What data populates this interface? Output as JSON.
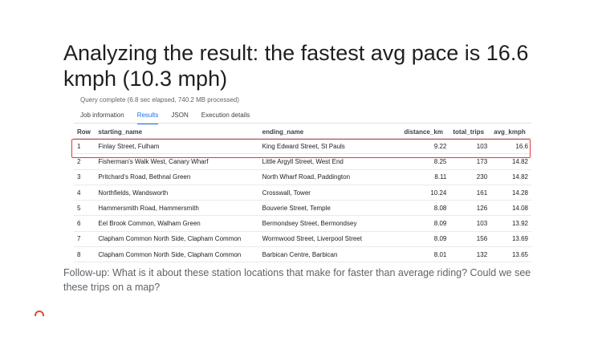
{
  "slide": {
    "title": "Analyzing the result: the fastest avg pace is 16.6 kmph (10.3 mph)",
    "followup": "Follow-up: What is it about these station locations that make for faster than average riding? Could we see these trips on a map?"
  },
  "query": {
    "status": "Query complete (6.8 sec elapsed, 740.2 MB processed)",
    "tabs": [
      "Job information",
      "Results",
      "JSON",
      "Execution details"
    ],
    "active_tab": "Results"
  },
  "table": {
    "headers": [
      "Row",
      "starting_name",
      "ending_name",
      "distance_km",
      "total_trips",
      "avg_kmph"
    ],
    "rows": [
      [
        "1",
        "Finlay Street, Fulham",
        "King Edward Street, St Pauls",
        "9.22",
        "103",
        "16.6"
      ],
      [
        "2",
        "Fisherman's Walk West, Canary Wharf",
        "Little Argyll Street, West End",
        "8.25",
        "173",
        "14.82"
      ],
      [
        "3",
        "Pritchard's Road, Bethnal Green",
        "North Wharf Road, Paddington",
        "8.11",
        "230",
        "14.82"
      ],
      [
        "4",
        "Northfields, Wandsworth",
        "Crosswall, Tower",
        "10.24",
        "161",
        "14.28"
      ],
      [
        "5",
        "Hammersmith Road, Hammersmith",
        "Bouverie Street, Temple",
        "8.08",
        "126",
        "14.08"
      ],
      [
        "6",
        "Eel Brook Common, Walham Green",
        "Bermondsey Street, Bermondsey",
        "8.09",
        "103",
        "13.92"
      ],
      [
        "7",
        "Clapham Common North Side, Clapham Common",
        "Wormwood Street, Liverpool Street",
        "8.09",
        "156",
        "13.69"
      ],
      [
        "8",
        "Clapham Common North Side, Clapham Common",
        "Barbican Centre, Barbican",
        "8.01",
        "132",
        "13.65"
      ]
    ],
    "highlighted_row": 1
  },
  "colors": {
    "accent": "#1a73e8",
    "highlight": "#e53935"
  }
}
